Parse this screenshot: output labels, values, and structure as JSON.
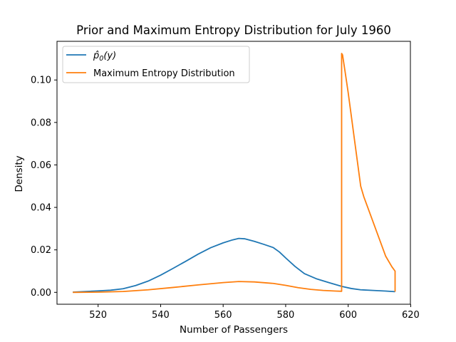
{
  "chart_data": {
    "type": "line",
    "title": "Prior and Maximum Entropy Distribution for July 1960",
    "xlabel": "Number of Passengers",
    "ylabel": "Density",
    "xlim": [
      506.85,
      619.9
    ],
    "ylim": [
      -0.0056,
      0.1182
    ],
    "xticks": [
      520,
      540,
      560,
      580,
      600,
      620
    ],
    "yticks": [
      0.0,
      0.02,
      0.04,
      0.06,
      0.08,
      0.1
    ],
    "xtick_labels": [
      "520",
      "540",
      "560",
      "580",
      "600",
      "620"
    ],
    "ytick_labels": [
      "0.00",
      "0.02",
      "0.04",
      "0.06",
      "0.08",
      "0.10"
    ],
    "grid": false,
    "legend_position": "top-left",
    "series": [
      {
        "name": "p0hat(y)",
        "color": "#1f77b4",
        "x": [
          511.9,
          516,
          520,
          524,
          528,
          532,
          536,
          540,
          544,
          548,
          552,
          556,
          560,
          563,
          565,
          567,
          570,
          573,
          576,
          578,
          580,
          583,
          586,
          590,
          594,
          598,
          601,
          604,
          608,
          612,
          615
        ],
        "y": [
          0.0001,
          0.0004,
          0.0007,
          0.001,
          0.0017,
          0.0032,
          0.0053,
          0.0081,
          0.0113,
          0.0146,
          0.018,
          0.021,
          0.0233,
          0.0247,
          0.0254,
          0.0252,
          0.024,
          0.0226,
          0.0211,
          0.019,
          0.0162,
          0.0122,
          0.0088,
          0.0063,
          0.0045,
          0.0028,
          0.0018,
          0.0012,
          0.0009,
          0.0006,
          0.0003
        ]
      },
      {
        "name": "Maximum Entropy Distribution",
        "color": "#ff7f0e",
        "x": [
          511.9,
          520,
          528,
          536,
          544,
          552,
          560,
          565,
          570,
          576,
          580,
          584,
          588,
          592,
          596,
          597.9,
          597.9,
          598.2,
          599,
          600,
          601,
          602,
          603,
          604,
          605,
          606,
          608,
          610,
          612,
          614,
          615,
          615
        ],
        "y": [
          0.0,
          0.0001,
          0.0004,
          0.0012,
          0.0023,
          0.0035,
          0.0046,
          0.0051,
          0.0049,
          0.0042,
          0.0033,
          0.0022,
          0.0014,
          0.0009,
          0.0006,
          0.0005,
          0.1125,
          0.1118,
          0.104,
          0.094,
          0.083,
          0.072,
          0.061,
          0.05,
          0.045,
          0.041,
          0.033,
          0.025,
          0.017,
          0.012,
          0.01,
          0.0003
        ]
      }
    ],
    "legend": [
      {
        "label": "p̂0(y)",
        "color": "#1f77b4"
      },
      {
        "label": "Maximum Entropy Distribution",
        "color": "#ff7f0e"
      }
    ]
  }
}
